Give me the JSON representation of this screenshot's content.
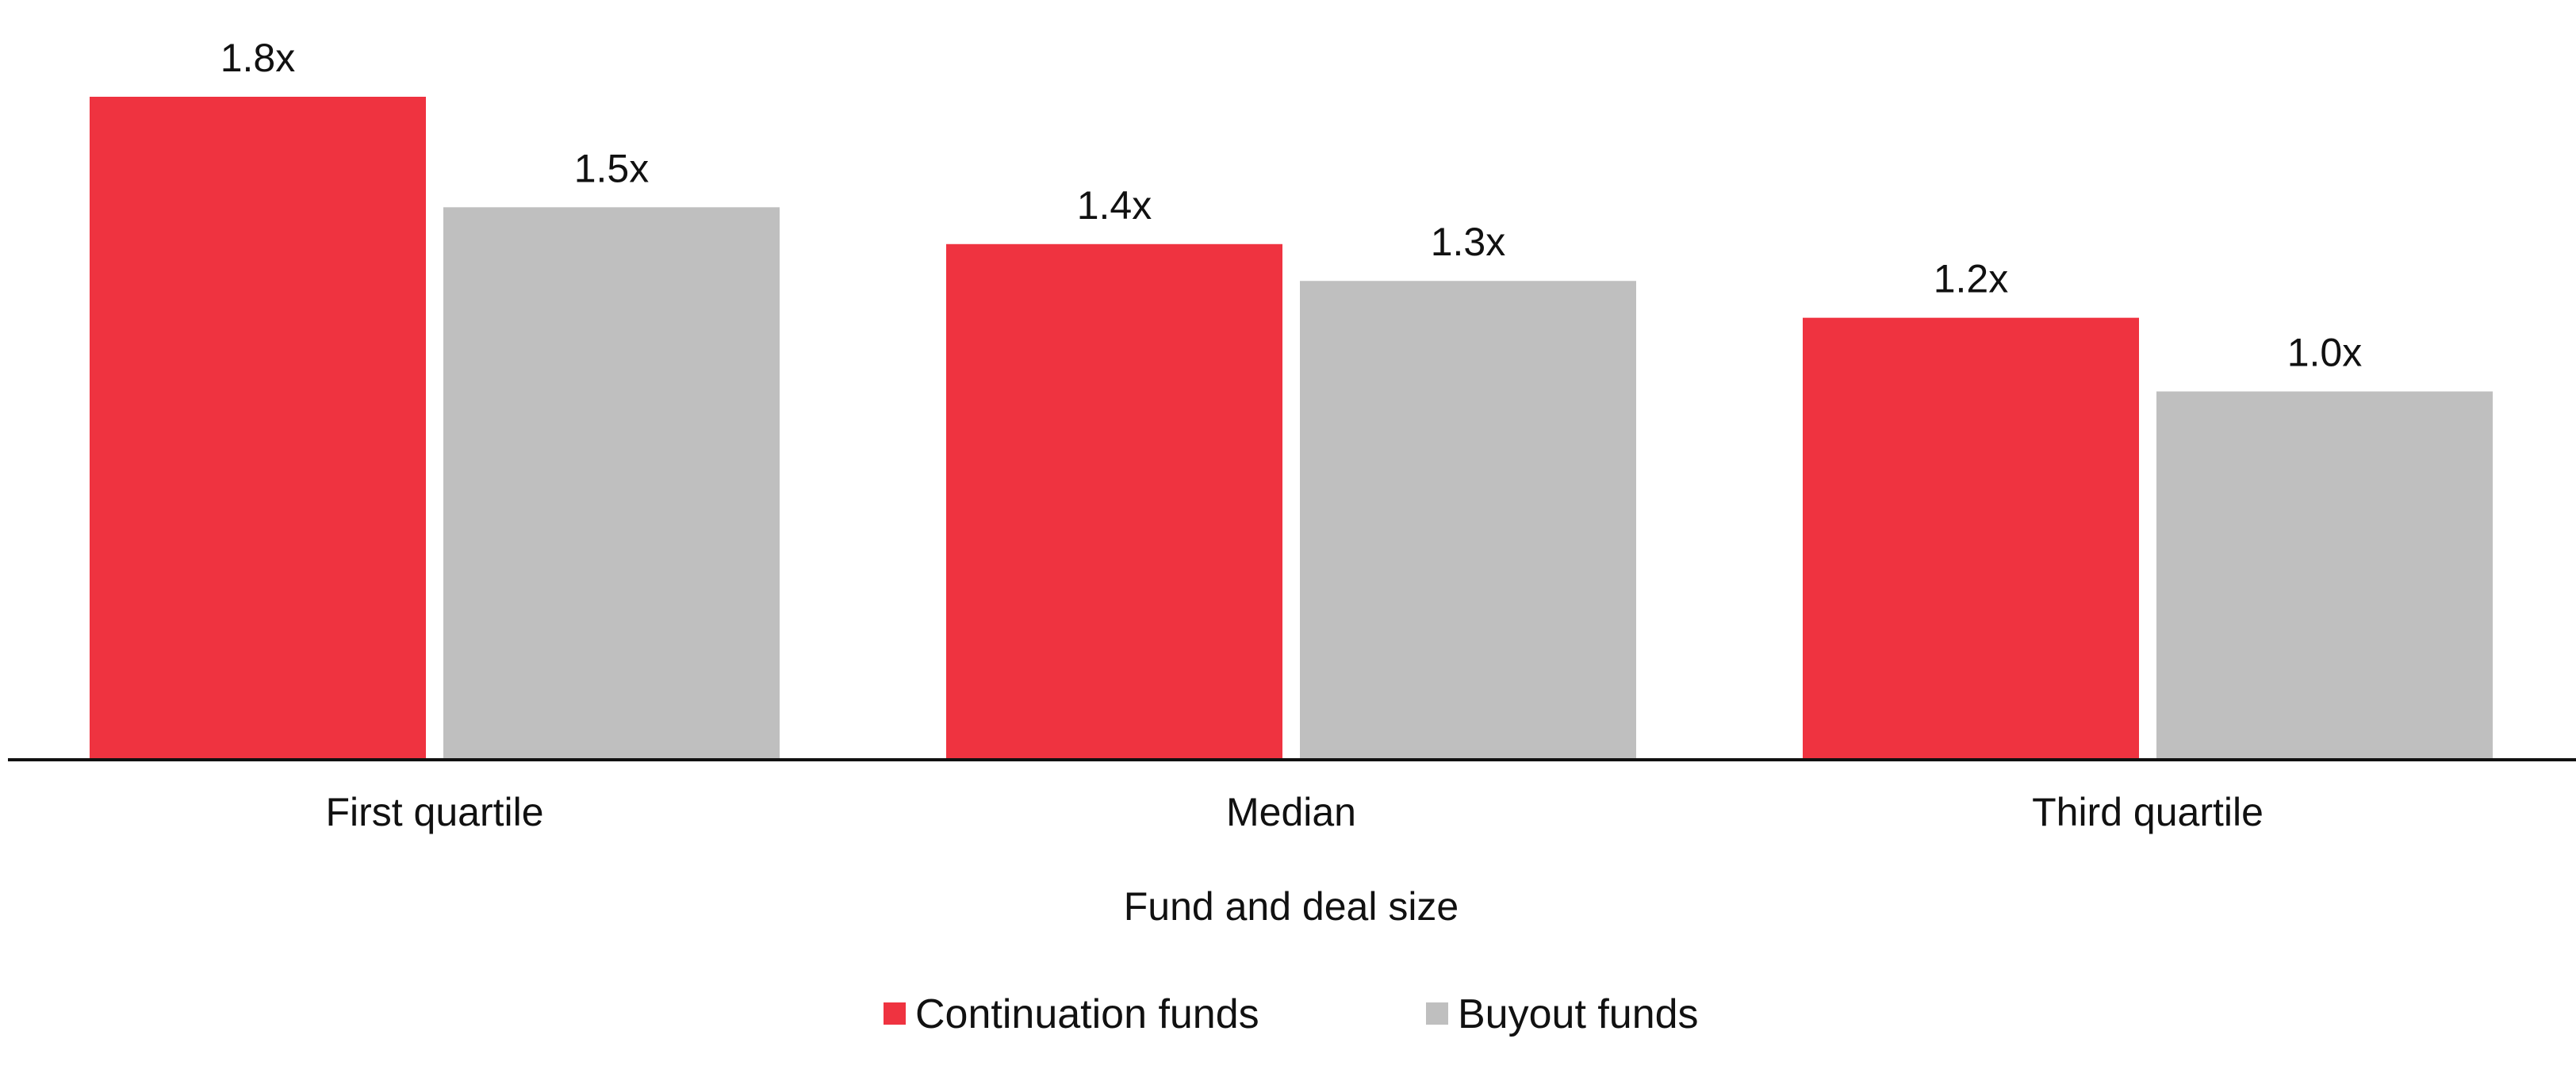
{
  "chart_data": {
    "type": "bar",
    "categories": [
      "First quartile",
      "Median",
      "Third quartile"
    ],
    "series": [
      {
        "name": "Continuation funds",
        "color": "#EF3340",
        "values": [
          1.8,
          1.4,
          1.2
        ],
        "labels": [
          "1.8x",
          "1.4x",
          "1.2x"
        ]
      },
      {
        "name": "Buyout funds",
        "color": "#BFBFBF",
        "values": [
          1.5,
          1.3,
          1.0
        ],
        "labels": [
          "1.5x",
          "1.3x",
          "1.0x"
        ]
      }
    ],
    "xlabel": "Fund and deal size",
    "ylabel": "",
    "ylim": [
      0,
      1.8
    ],
    "grid": false,
    "legend": "bottom-center"
  }
}
